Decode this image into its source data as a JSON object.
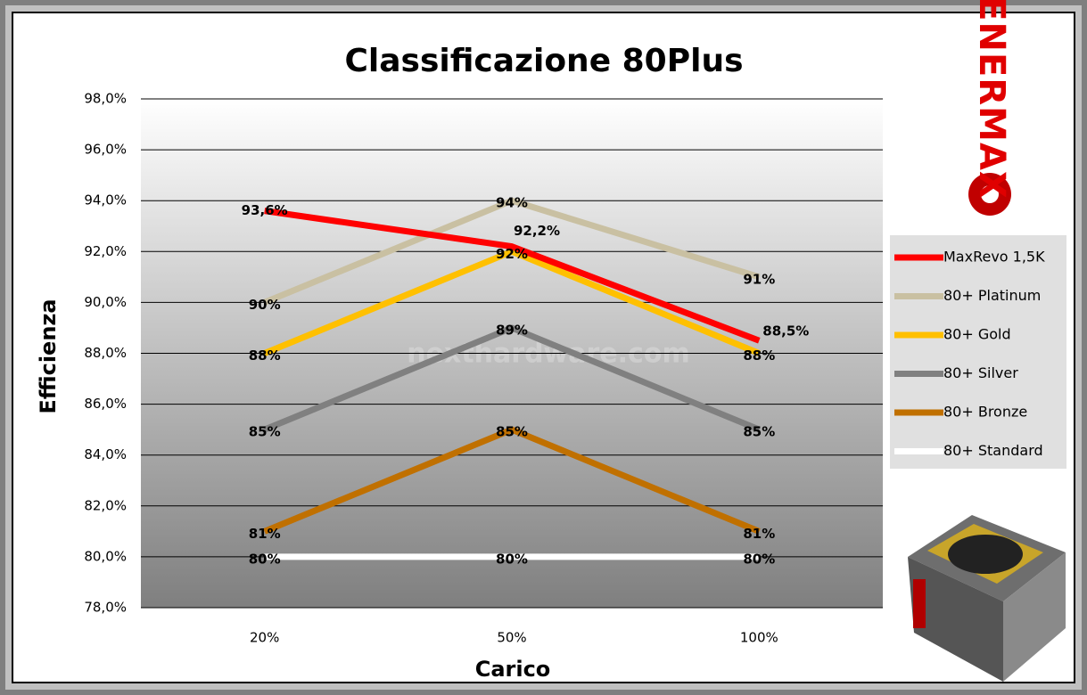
{
  "chart_data": {
    "type": "line",
    "title": "Classificazione 80Plus",
    "x_label": "Carico",
    "y_label": "Efficienza",
    "annotations": [
      "nexthardware.com",
      "ENERMAX"
    ],
    "categories": [
      "20%",
      "50%",
      "100%"
    ],
    "ylim": [
      78,
      98
    ],
    "yticks": [
      {
        "value": 78,
        "label": "78,0%"
      },
      {
        "value": 80,
        "label": "80,0%"
      },
      {
        "value": 82,
        "label": "82,0%"
      },
      {
        "value": 84,
        "label": "84,0%"
      },
      {
        "value": 86,
        "label": "86,0%"
      },
      {
        "value": 88,
        "label": "88,0%"
      },
      {
        "value": 90,
        "label": "90,0%"
      },
      {
        "value": 92,
        "label": "92,0%"
      },
      {
        "value": 94,
        "label": "94,0%"
      },
      {
        "value": 96,
        "label": "96,0%"
      },
      {
        "value": 98,
        "label": "98,0%"
      }
    ],
    "grid": true,
    "legend": "right",
    "series": [
      {
        "name": "MaxRevo 1,5K",
        "color": "#ff0000",
        "values": [
          93.6,
          92.2,
          88.5
        ],
        "value_labels": [
          "93,6%",
          "92,2%",
          "88,5%"
        ]
      },
      {
        "name": "80+ Platinum",
        "color": "#c9c0a2",
        "values": [
          90,
          94,
          91
        ],
        "value_labels": [
          "90%",
          "94%",
          "91%"
        ]
      },
      {
        "name": "80+ Gold",
        "color": "#ffc000",
        "values": [
          88,
          92,
          88
        ],
        "value_labels": [
          "88%",
          "92%",
          "88%"
        ]
      },
      {
        "name": "80+ Silver",
        "color": "#808080",
        "values": [
          85,
          89,
          85
        ],
        "value_labels": [
          "85%",
          "89%",
          "85%"
        ]
      },
      {
        "name": "80+ Bronze",
        "color": "#c07000",
        "values": [
          81,
          85,
          81
        ],
        "value_labels": [
          "81%",
          "85%",
          "81%"
        ]
      },
      {
        "name": "80+ Standard",
        "color": "#ffffff",
        "values": [
          80,
          80,
          80
        ],
        "value_labels": [
          "80%",
          "80%",
          "80%"
        ]
      }
    ]
  }
}
